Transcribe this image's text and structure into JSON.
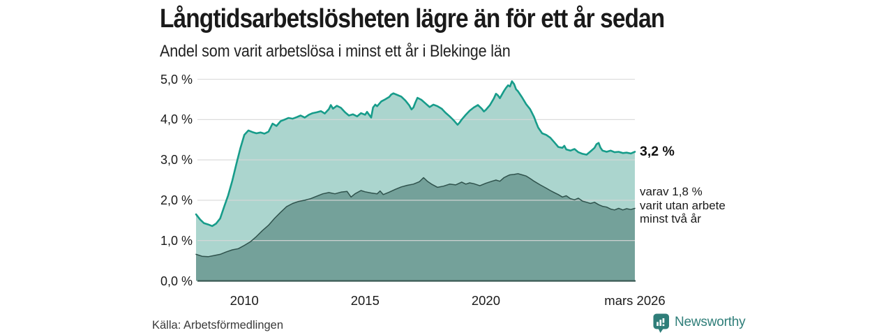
{
  "header": {
    "title": "Långtidsarbetslösheten lägre än för ett år sedan",
    "subtitle": "Andel som varit arbetslösa i minst ett år i Blekinge län"
  },
  "footer": {
    "source": "Källa: Arbetsförmedlingen",
    "brand": "Newsworthy"
  },
  "colors": {
    "accent_teal": "#179c8a",
    "light_fill": "#abd5ce",
    "dark_fill": "#74a19a",
    "dark_stroke": "#2f524c",
    "grid": "#d8d8d8",
    "axis": "#3b5b55",
    "brand_teal": "#2f7e79",
    "text": "#1a1a1a"
  },
  "chart_data": {
    "type": "area",
    "title": "Långtidsarbetslösheten lägre än för ett år sedan",
    "subtitle": "Andel som varit arbetslösa i minst ett år i Blekinge län",
    "source": "Källa: Arbetsförmedlingen",
    "xlabel": "",
    "ylabel": "%",
    "xlim": [
      2008.0,
      2026.17
    ],
    "ylim": [
      0,
      5
    ],
    "grid": "horizontal",
    "legend_position": "right-annotations",
    "x_axis": {
      "ticks": [
        {
          "value": 2010,
          "label": "2010"
        },
        {
          "value": 2015,
          "label": "2015"
        },
        {
          "value": 2020,
          "label": "2020"
        },
        {
          "value": 2026.17,
          "label": "mars 2026"
        }
      ]
    },
    "y_axis": {
      "unit": "%",
      "ticks": [
        {
          "value": 5,
          "label": "5,0 %"
        },
        {
          "value": 4,
          "label": "4,0 %"
        },
        {
          "value": 3,
          "label": "3,0 %"
        },
        {
          "value": 2,
          "label": "2,0 %"
        },
        {
          "value": 1,
          "label": "1,0 %"
        },
        {
          "value": 0,
          "label": "0,0 %"
        }
      ]
    },
    "series": [
      {
        "name": "Andel som varit arbetslösa i minst ett år",
        "line_color": "#179c8a",
        "fill_color": "#abd5ce",
        "line_width": 2.6,
        "end_label": "3,2 %",
        "latest_value": 3.2,
        "points": [
          [
            2008.0,
            1.65
          ],
          [
            2008.17,
            1.52
          ],
          [
            2008.33,
            1.43
          ],
          [
            2008.5,
            1.4
          ],
          [
            2008.67,
            1.36
          ],
          [
            2008.83,
            1.42
          ],
          [
            2009.0,
            1.55
          ],
          [
            2009.17,
            1.85
          ],
          [
            2009.33,
            2.12
          ],
          [
            2009.5,
            2.48
          ],
          [
            2009.67,
            2.9
          ],
          [
            2009.83,
            3.28
          ],
          [
            2010.0,
            3.62
          ],
          [
            2010.17,
            3.73
          ],
          [
            2010.33,
            3.69
          ],
          [
            2010.5,
            3.66
          ],
          [
            2010.67,
            3.68
          ],
          [
            2010.83,
            3.65
          ],
          [
            2011.0,
            3.7
          ],
          [
            2011.17,
            3.9
          ],
          [
            2011.33,
            3.84
          ],
          [
            2011.5,
            3.96
          ],
          [
            2011.67,
            4.0
          ],
          [
            2011.83,
            4.04
          ],
          [
            2012.0,
            4.02
          ],
          [
            2012.17,
            4.06
          ],
          [
            2012.33,
            4.1
          ],
          [
            2012.5,
            4.05
          ],
          [
            2012.67,
            4.12
          ],
          [
            2012.83,
            4.16
          ],
          [
            2013.0,
            4.18
          ],
          [
            2013.17,
            4.21
          ],
          [
            2013.33,
            4.15
          ],
          [
            2013.5,
            4.26
          ],
          [
            2013.58,
            4.36
          ],
          [
            2013.67,
            4.27
          ],
          [
            2013.83,
            4.34
          ],
          [
            2014.0,
            4.29
          ],
          [
            2014.17,
            4.18
          ],
          [
            2014.33,
            4.1
          ],
          [
            2014.5,
            4.13
          ],
          [
            2014.67,
            4.08
          ],
          [
            2014.83,
            4.16
          ],
          [
            2015.0,
            4.12
          ],
          [
            2015.08,
            4.19
          ],
          [
            2015.25,
            4.05
          ],
          [
            2015.33,
            4.3
          ],
          [
            2015.42,
            4.37
          ],
          [
            2015.5,
            4.33
          ],
          [
            2015.67,
            4.45
          ],
          [
            2015.83,
            4.5
          ],
          [
            2016.0,
            4.56
          ],
          [
            2016.08,
            4.62
          ],
          [
            2016.17,
            4.65
          ],
          [
            2016.33,
            4.61
          ],
          [
            2016.5,
            4.57
          ],
          [
            2016.67,
            4.47
          ],
          [
            2016.83,
            4.35
          ],
          [
            2016.92,
            4.25
          ],
          [
            2017.0,
            4.3
          ],
          [
            2017.08,
            4.42
          ],
          [
            2017.17,
            4.54
          ],
          [
            2017.33,
            4.49
          ],
          [
            2017.5,
            4.4
          ],
          [
            2017.67,
            4.31
          ],
          [
            2017.83,
            4.37
          ],
          [
            2018.0,
            4.33
          ],
          [
            2018.17,
            4.27
          ],
          [
            2018.33,
            4.17
          ],
          [
            2018.5,
            4.08
          ],
          [
            2018.67,
            3.98
          ],
          [
            2018.83,
            3.87
          ],
          [
            2018.92,
            3.93
          ],
          [
            2019.0,
            4.0
          ],
          [
            2019.17,
            4.12
          ],
          [
            2019.33,
            4.22
          ],
          [
            2019.5,
            4.3
          ],
          [
            2019.67,
            4.36
          ],
          [
            2019.83,
            4.27
          ],
          [
            2019.92,
            4.2
          ],
          [
            2020.0,
            4.24
          ],
          [
            2020.17,
            4.36
          ],
          [
            2020.33,
            4.52
          ],
          [
            2020.42,
            4.64
          ],
          [
            2020.5,
            4.6
          ],
          [
            2020.58,
            4.53
          ],
          [
            2020.75,
            4.71
          ],
          [
            2020.83,
            4.78
          ],
          [
            2020.92,
            4.85
          ],
          [
            2021.0,
            4.82
          ],
          [
            2021.08,
            4.95
          ],
          [
            2021.17,
            4.88
          ],
          [
            2021.25,
            4.75
          ],
          [
            2021.33,
            4.7
          ],
          [
            2021.5,
            4.55
          ],
          [
            2021.67,
            4.38
          ],
          [
            2021.83,
            4.26
          ],
          [
            2022.0,
            4.06
          ],
          [
            2022.08,
            3.93
          ],
          [
            2022.17,
            3.8
          ],
          [
            2022.33,
            3.66
          ],
          [
            2022.5,
            3.62
          ],
          [
            2022.67,
            3.55
          ],
          [
            2022.83,
            3.44
          ],
          [
            2023.0,
            3.32
          ],
          [
            2023.17,
            3.3
          ],
          [
            2023.25,
            3.35
          ],
          [
            2023.33,
            3.26
          ],
          [
            2023.5,
            3.23
          ],
          [
            2023.67,
            3.27
          ],
          [
            2023.83,
            3.19
          ],
          [
            2024.0,
            3.15
          ],
          [
            2024.17,
            3.13
          ],
          [
            2024.33,
            3.21
          ],
          [
            2024.5,
            3.3
          ],
          [
            2024.58,
            3.39
          ],
          [
            2024.67,
            3.42
          ],
          [
            2024.75,
            3.3
          ],
          [
            2024.83,
            3.23
          ],
          [
            2025.0,
            3.2
          ],
          [
            2025.17,
            3.23
          ],
          [
            2025.33,
            3.19
          ],
          [
            2025.5,
            3.2
          ],
          [
            2025.67,
            3.17
          ],
          [
            2025.83,
            3.18
          ],
          [
            2026.0,
            3.16
          ],
          [
            2026.17,
            3.2
          ]
        ]
      },
      {
        "name": "varav utan arbete minst två år",
        "line_color": "#2f524c",
        "fill_color": "#74a19a",
        "line_width": 1.5,
        "end_label_lines": [
          "varav 1,8 %",
          "varit utan arbete",
          "minst två år"
        ],
        "latest_value": 1.8,
        "points": [
          [
            2008.0,
            0.66
          ],
          [
            2008.25,
            0.61
          ],
          [
            2008.5,
            0.6
          ],
          [
            2008.75,
            0.63
          ],
          [
            2009.0,
            0.66
          ],
          [
            2009.25,
            0.72
          ],
          [
            2009.5,
            0.77
          ],
          [
            2009.75,
            0.8
          ],
          [
            2010.0,
            0.88
          ],
          [
            2010.25,
            0.97
          ],
          [
            2010.5,
            1.1
          ],
          [
            2010.75,
            1.25
          ],
          [
            2011.0,
            1.38
          ],
          [
            2011.25,
            1.55
          ],
          [
            2011.5,
            1.7
          ],
          [
            2011.75,
            1.84
          ],
          [
            2012.0,
            1.92
          ],
          [
            2012.25,
            1.97
          ],
          [
            2012.5,
            2.0
          ],
          [
            2012.75,
            2.04
          ],
          [
            2013.0,
            2.1
          ],
          [
            2013.25,
            2.16
          ],
          [
            2013.5,
            2.19
          ],
          [
            2013.75,
            2.16
          ],
          [
            2014.0,
            2.2
          ],
          [
            2014.25,
            2.22
          ],
          [
            2014.42,
            2.08
          ],
          [
            2014.58,
            2.16
          ],
          [
            2014.83,
            2.24
          ],
          [
            2015.0,
            2.21
          ],
          [
            2015.25,
            2.18
          ],
          [
            2015.5,
            2.16
          ],
          [
            2015.62,
            2.23
          ],
          [
            2015.75,
            2.14
          ],
          [
            2016.0,
            2.2
          ],
          [
            2016.25,
            2.27
          ],
          [
            2016.5,
            2.33
          ],
          [
            2016.75,
            2.37
          ],
          [
            2017.0,
            2.4
          ],
          [
            2017.25,
            2.46
          ],
          [
            2017.42,
            2.56
          ],
          [
            2017.58,
            2.47
          ],
          [
            2017.75,
            2.4
          ],
          [
            2018.0,
            2.32
          ],
          [
            2018.25,
            2.35
          ],
          [
            2018.5,
            2.4
          ],
          [
            2018.75,
            2.38
          ],
          [
            2019.0,
            2.45
          ],
          [
            2019.17,
            2.4
          ],
          [
            2019.33,
            2.43
          ],
          [
            2019.5,
            2.41
          ],
          [
            2019.75,
            2.36
          ],
          [
            2020.0,
            2.42
          ],
          [
            2020.25,
            2.47
          ],
          [
            2020.42,
            2.5
          ],
          [
            2020.58,
            2.47
          ],
          [
            2020.75,
            2.56
          ],
          [
            2020.92,
            2.61
          ],
          [
            2021.0,
            2.63
          ],
          [
            2021.17,
            2.64
          ],
          [
            2021.33,
            2.66
          ],
          [
            2021.5,
            2.63
          ],
          [
            2021.67,
            2.6
          ],
          [
            2021.83,
            2.54
          ],
          [
            2022.0,
            2.47
          ],
          [
            2022.25,
            2.38
          ],
          [
            2022.5,
            2.3
          ],
          [
            2022.67,
            2.24
          ],
          [
            2022.83,
            2.19
          ],
          [
            2023.0,
            2.14
          ],
          [
            2023.17,
            2.08
          ],
          [
            2023.33,
            2.11
          ],
          [
            2023.5,
            2.04
          ],
          [
            2023.67,
            2.01
          ],
          [
            2023.83,
            2.05
          ],
          [
            2024.0,
            1.98
          ],
          [
            2024.17,
            1.95
          ],
          [
            2024.33,
            1.92
          ],
          [
            2024.5,
            1.95
          ],
          [
            2024.67,
            1.89
          ],
          [
            2024.83,
            1.85
          ],
          [
            2025.0,
            1.83
          ],
          [
            2025.17,
            1.78
          ],
          [
            2025.33,
            1.76
          ],
          [
            2025.5,
            1.8
          ],
          [
            2025.67,
            1.76
          ],
          [
            2025.83,
            1.79
          ],
          [
            2026.0,
            1.77
          ],
          [
            2026.17,
            1.8
          ]
        ]
      }
    ]
  }
}
